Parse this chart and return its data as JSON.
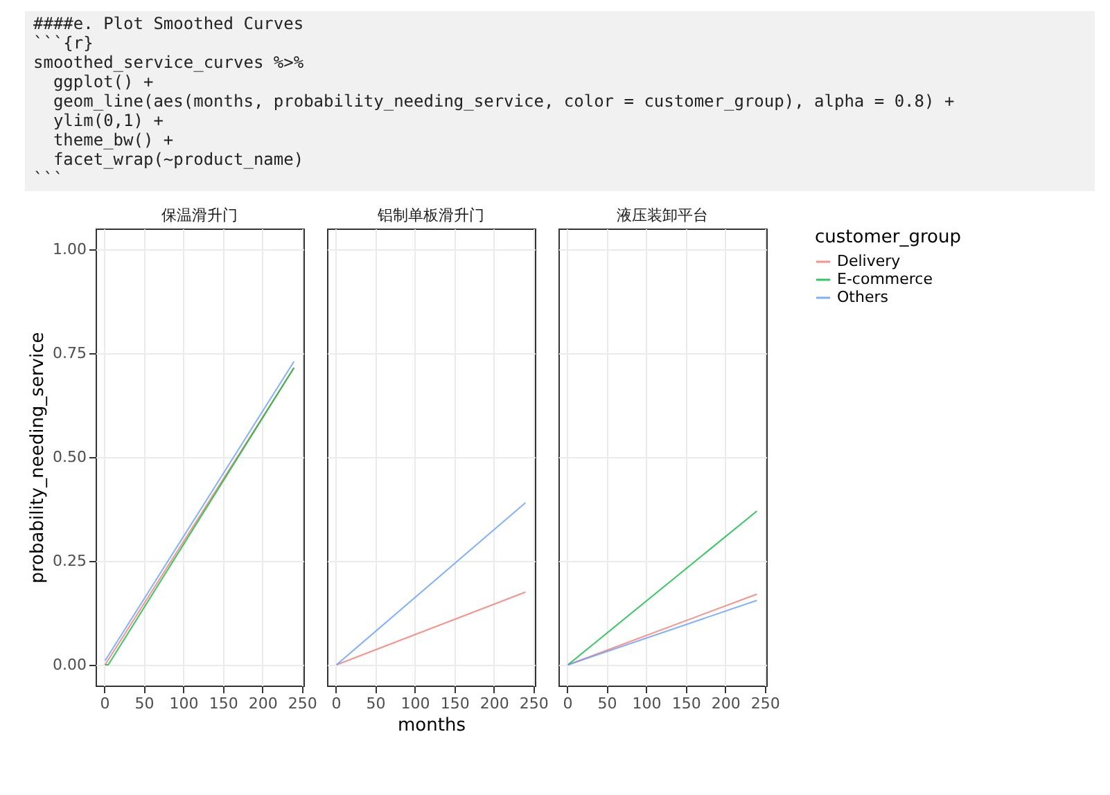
{
  "chart_data": [
    {
      "type": "line",
      "title": "保温滑升门",
      "ylabel": "probability_needing_service",
      "legend": "right",
      "legend_title": "customer_group",
      "xlim": [
        -11,
        252
      ],
      "xticks": [
        0,
        50,
        100,
        150,
        200,
        250
      ],
      "ylim": [
        -0.05,
        1.05
      ],
      "yticks": [
        {
          "value": 0,
          "label": "0.00"
        },
        {
          "value": 0.25,
          "label": "0.25"
        },
        {
          "value": 0.5,
          "label": "0.50"
        },
        {
          "value": 0.75,
          "label": "0.75"
        },
        {
          "value": 1,
          "label": "1.00"
        }
      ],
      "grid": true,
      "annotations": [
        "####e. Plot Smoothed Curves",
        "```{r}",
        "smoothed_service_curves %>%",
        "  ggplot() +",
        "  geom_line(aes(months, probability_needing_service, color = customer_group), alpha = 0.8) +",
        "  ylim(0,1) +",
        "  theme_bw() +",
        "  facet_wrap(~product_name)",
        "```"
      ],
      "series": [
        {
          "name": "Delivery",
          "color": "#f8766d",
          "x": [
            1,
            240
          ],
          "values": [
            0,
            0.715
          ]
        },
        {
          "name": "E-commerce",
          "color": "#00ba38",
          "x": [
            1,
            5,
            240
          ],
          "values": [
            0,
            0,
            0.715
          ]
        },
        {
          "name": "Others",
          "color": "#619cff",
          "x": [
            1,
            240
          ],
          "values": [
            0.01,
            0.73
          ]
        }
      ]
    },
    {
      "type": "line",
      "title": "铝制单板滑升门",
      "xlabel": "months",
      "xlim": [
        -11,
        252
      ],
      "xticks": [
        0,
        50,
        100,
        150,
        200,
        250
      ],
      "ylim": [
        -0.05,
        1.05
      ],
      "yticks": [
        0,
        0.25,
        0.5,
        0.75,
        1
      ],
      "grid": true,
      "tick_labels": "x",
      "series": [
        {
          "name": "Delivery",
          "color": "#f8766d",
          "x": [
            1,
            240
          ],
          "values": [
            0,
            0.175
          ]
        },
        {
          "name": "Others",
          "color": "#619cff",
          "x": [
            1,
            240
          ],
          "values": [
            0,
            0.39
          ]
        }
      ]
    },
    {
      "type": "line",
      "title": "液压装卸平台",
      "xlim": [
        -11,
        252
      ],
      "xticks": [
        0,
        50,
        100,
        150,
        200,
        250
      ],
      "ylim": [
        -0.05,
        1.05
      ],
      "yticks": [
        0,
        0.25,
        0.5,
        0.75,
        1
      ],
      "grid": true,
      "tick_labels": "x",
      "series": [
        {
          "name": "Delivery",
          "color": "#f8766d",
          "x": [
            1,
            240
          ],
          "values": [
            0,
            0.17
          ]
        },
        {
          "name": "E-commerce",
          "color": "#00ba38",
          "x": [
            1,
            240
          ],
          "values": [
            0,
            0.37
          ]
        },
        {
          "name": "Others",
          "color": "#619cff",
          "x": [
            1,
            240
          ],
          "values": [
            0,
            0.155
          ]
        }
      ]
    }
  ]
}
